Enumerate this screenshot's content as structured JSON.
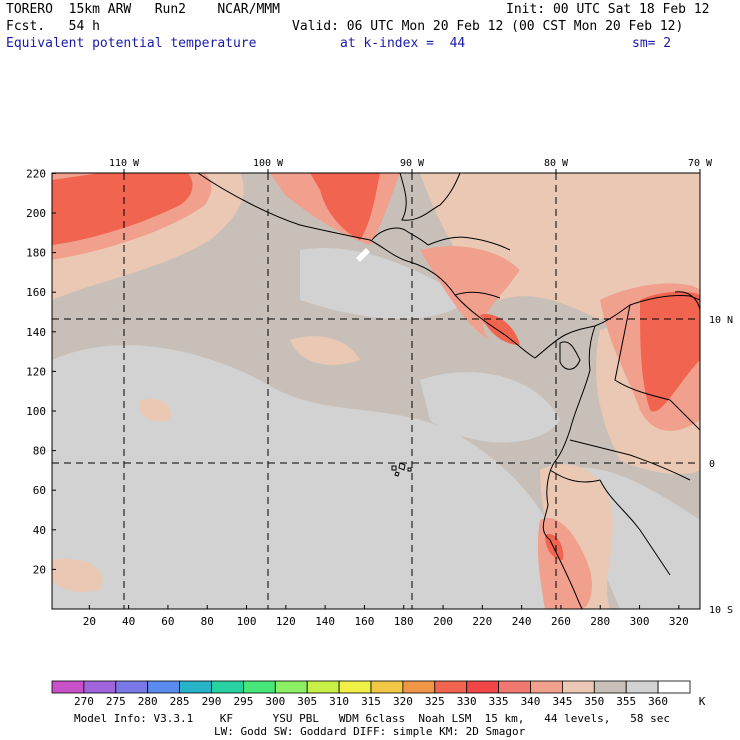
{
  "header": {
    "model": "TORERO  15km ARW   Run2    NCAR/MMM",
    "init": "Init: 00 UTC Sat 18 Feb 12",
    "fcst": "Fcst.   54 h",
    "valid": "Valid: 06 UTC Mon 20 Feb 12 (00 CST Mon 20 Feb 12)",
    "field": "Equivalent potential temperature",
    "level": "at k-index =  44",
    "smooth": "sm= 2"
  },
  "map": {
    "lon_labels": [
      "110 W",
      "100 W",
      "90 W",
      "80 W",
      "70 W"
    ],
    "lat_labels": [
      "10 N",
      "0",
      "10 S"
    ],
    "y_ticks": [
      "20",
      "40",
      "60",
      "80",
      "100",
      "120",
      "140",
      "160",
      "180",
      "200",
      "220"
    ],
    "x_ticks": [
      "20",
      "40",
      "60",
      "80",
      "100",
      "120",
      "140",
      "160",
      "180",
      "200",
      "220",
      "240",
      "260",
      "280",
      "300",
      "320"
    ]
  },
  "colorbar": {
    "unit": "K",
    "labels": [
      "270",
      "275",
      "280",
      "285",
      "290",
      "295",
      "300",
      "305",
      "310",
      "315",
      "320",
      "325",
      "330",
      "335",
      "340",
      "345",
      "350",
      "355",
      "360"
    ],
    "colors": [
      "#c850c8",
      "#a064dc",
      "#7878e6",
      "#5a8cf0",
      "#28b4c8",
      "#28d2a0",
      "#46e678",
      "#8cf064",
      "#c8f046",
      "#f0f046",
      "#f0c846",
      "#f09646",
      "#f06450",
      "#f04646",
      "#f0786e",
      "#f0a08c",
      "#eac8b4",
      "#c8c0b8",
      "#d2d2d2",
      "#ffffff"
    ]
  },
  "footer": {
    "line1": "Model Info: V3.3.1    KF      YSU PBL   WDM 6class  Noah LSM  15 km,   44 levels,   58 sec",
    "line2": "LW: Godd SW: Goddard DIFF: simple KM: 2D Smagor"
  }
}
